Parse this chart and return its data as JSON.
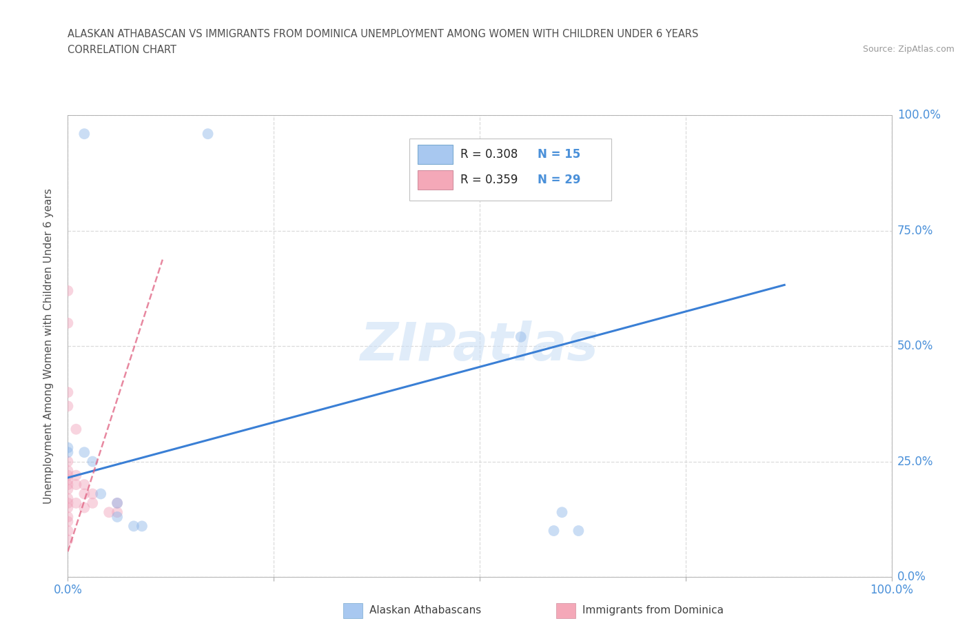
{
  "title_line1": "ALASKAN ATHABASCAN VS IMMIGRANTS FROM DOMINICA UNEMPLOYMENT AMONG WOMEN WITH CHILDREN UNDER 6 YEARS",
  "title_line2": "CORRELATION CHART",
  "source": "Source: ZipAtlas.com",
  "ylabel": "Unemployment Among Women with Children Under 6 years",
  "watermark": "ZIPatlas",
  "xlim": [
    0.0,
    1.0
  ],
  "ylim": [
    0.0,
    1.0
  ],
  "xticks": [
    0.0,
    0.25,
    0.5,
    0.75,
    1.0
  ],
  "yticks": [
    0.0,
    0.25,
    0.5,
    0.75,
    1.0
  ],
  "xtick_labels": [
    "0.0%",
    "",
    "",
    "",
    "100.0%"
  ],
  "ytick_labels": [
    "0.0%",
    "25.0%",
    "50.0%",
    "75.0%",
    "100.0%"
  ],
  "blue_R": 0.308,
  "blue_N": 15,
  "pink_R": 0.359,
  "pink_N": 29,
  "blue_color": "#8ab4e8",
  "pink_color": "#f0a0b8",
  "trend_blue_color": "#3a7fd5",
  "trend_pink_color": "#e06080",
  "legend_box_blue": "#a8c8f0",
  "legend_box_pink": "#f4a8b8",
  "blue_scatter_x": [
    0.02,
    0.17,
    0.0,
    0.0,
    0.02,
    0.03,
    0.04,
    0.06,
    0.06,
    0.08,
    0.09,
    0.55,
    0.59,
    0.6,
    0.62
  ],
  "blue_scatter_y": [
    0.96,
    0.96,
    0.28,
    0.27,
    0.27,
    0.25,
    0.18,
    0.16,
    0.13,
    0.11,
    0.11,
    0.52,
    0.1,
    0.14,
    0.1
  ],
  "pink_scatter_x": [
    0.0,
    0.0,
    0.0,
    0.0,
    0.0,
    0.0,
    0.0,
    0.0,
    0.0,
    0.0,
    0.0,
    0.0,
    0.0,
    0.0,
    0.0,
    0.0,
    0.0,
    0.01,
    0.01,
    0.01,
    0.01,
    0.02,
    0.02,
    0.02,
    0.03,
    0.03,
    0.05,
    0.06,
    0.06
  ],
  "pink_scatter_y": [
    0.62,
    0.55,
    0.4,
    0.37,
    0.25,
    0.23,
    0.22,
    0.21,
    0.2,
    0.19,
    0.17,
    0.16,
    0.15,
    0.13,
    0.12,
    0.1,
    0.08,
    0.32,
    0.22,
    0.2,
    0.16,
    0.2,
    0.18,
    0.15,
    0.18,
    0.16,
    0.14,
    0.16,
    0.14
  ],
  "blue_trend_y_intercept": 0.215,
  "blue_trend_slope": 0.48,
  "pink_trend_y_intercept": 0.055,
  "pink_trend_slope": 5.5,
  "pink_trend_x_max": 0.115,
  "grid_color": "#d8d8d8",
  "background_color": "#ffffff",
  "title_color": "#505050",
  "axis_label_color": "#505050",
  "tick_color": "#4a90d9",
  "marker_size": 130,
  "marker_alpha": 0.45,
  "title_fontsize": 10.5,
  "subtitle_fontsize": 10.5,
  "legend_fontsize": 12,
  "axis_label_fontsize": 11,
  "watermark_fontsize": 55
}
